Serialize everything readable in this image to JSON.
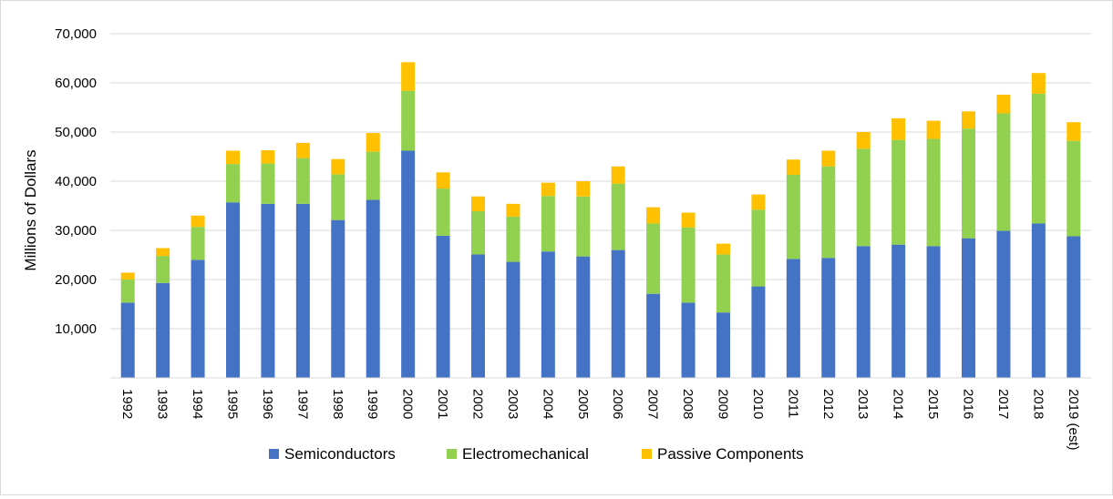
{
  "chart_data": {
    "type": "bar",
    "stacked": true,
    "title": "",
    "xlabel": "",
    "ylabel": "Millions of Dollars",
    "ylim": [
      0,
      70000
    ],
    "yticks": [
      10000,
      20000,
      30000,
      40000,
      50000,
      60000,
      70000
    ],
    "ytick_labels": [
      "10,000",
      "20,000",
      "30,000",
      "40,000",
      "50,000",
      "60,000",
      "70,000"
    ],
    "grid": "horizontal",
    "legend_position": "bottom",
    "categories": [
      "1992",
      "1993",
      "1994",
      "1995",
      "1996",
      "1997",
      "1998",
      "1999",
      "2000",
      "2001",
      "2002",
      "2003",
      "2004",
      "2005",
      "2006",
      "2007",
      "2008",
      "2009",
      "2010",
      "2011",
      "2012",
      "2013",
      "2014",
      "2015",
      "2016",
      "2017",
      "2018",
      "2019 (est)"
    ],
    "series": [
      {
        "name": "Semiconductors",
        "color": "#4472C4",
        "values": [
          15300,
          19300,
          24000,
          35700,
          35400,
          35400,
          32100,
          36200,
          46200,
          28900,
          25100,
          23600,
          25700,
          24700,
          26000,
          17100,
          15300,
          13300,
          18600,
          24200,
          24400,
          26800,
          27100,
          26800,
          28400,
          29900,
          31400,
          28800
        ]
      },
      {
        "name": "Electromechanical",
        "color": "#92D050",
        "values": [
          4700,
          5500,
          6700,
          7800,
          8200,
          9300,
          9300,
          9800,
          12200,
          9600,
          8800,
          9200,
          11300,
          12200,
          13500,
          14300,
          15300,
          11800,
          15600,
          17100,
          18600,
          19800,
          21300,
          21800,
          22300,
          23900,
          26400,
          19400
        ]
      },
      {
        "name": "Passive Components",
        "color": "#FFC000",
        "values": [
          1400,
          1600,
          2300,
          2700,
          2700,
          3100,
          3100,
          3800,
          5800,
          3300,
          3000,
          2600,
          2700,
          3100,
          3500,
          3300,
          3000,
          2200,
          3100,
          3100,
          3200,
          3400,
          4400,
          3700,
          3500,
          3800,
          4200,
          3800
        ]
      }
    ]
  }
}
